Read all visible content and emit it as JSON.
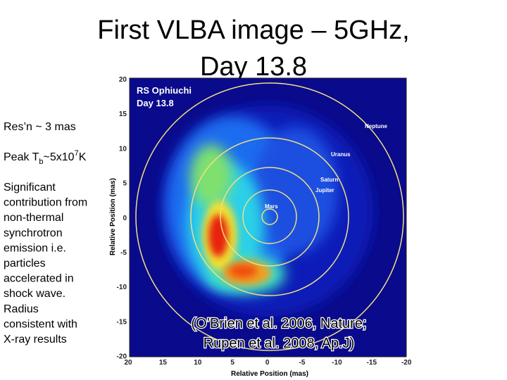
{
  "title": {
    "line1": "First VLBA image – 5GHz,",
    "line2": "Day 13.8"
  },
  "notes": {
    "resolution": "Res’n ~ 3 mas",
    "peak": {
      "prefix": "Peak T",
      "sub": "b",
      "mid": "~5x10",
      "sup": "7",
      "suffix": "K"
    },
    "paragraph": [
      "Significant",
      "contribution from",
      "non-thermal",
      "synchrotron",
      "emission i.e.",
      "particles",
      "accelerated in",
      "shock wave.",
      "Radius",
      "consistent with",
      "X-ray results"
    ]
  },
  "figure": {
    "label1": "RS Ophiuchi",
    "label2": "Day 13.8",
    "orbits": [
      "Neptune",
      "Uranus",
      "Saturn",
      "Jupiter",
      "Mars"
    ],
    "x_label": "Relative Position (mas)",
    "y_label": "Relative Position (mas)",
    "x_ticks": [
      "20",
      "15",
      "10",
      "5",
      "0",
      "-5",
      "-10",
      "-15",
      "-20"
    ],
    "y_ticks": [
      "20",
      "15",
      "10",
      "5",
      "0",
      "-5",
      "-10",
      "-15",
      "-20"
    ]
  },
  "citation": [
    "(O’Brien et al. 2006, Nature;",
    "Rupen et al. 2008, Ap.J)"
  ]
}
